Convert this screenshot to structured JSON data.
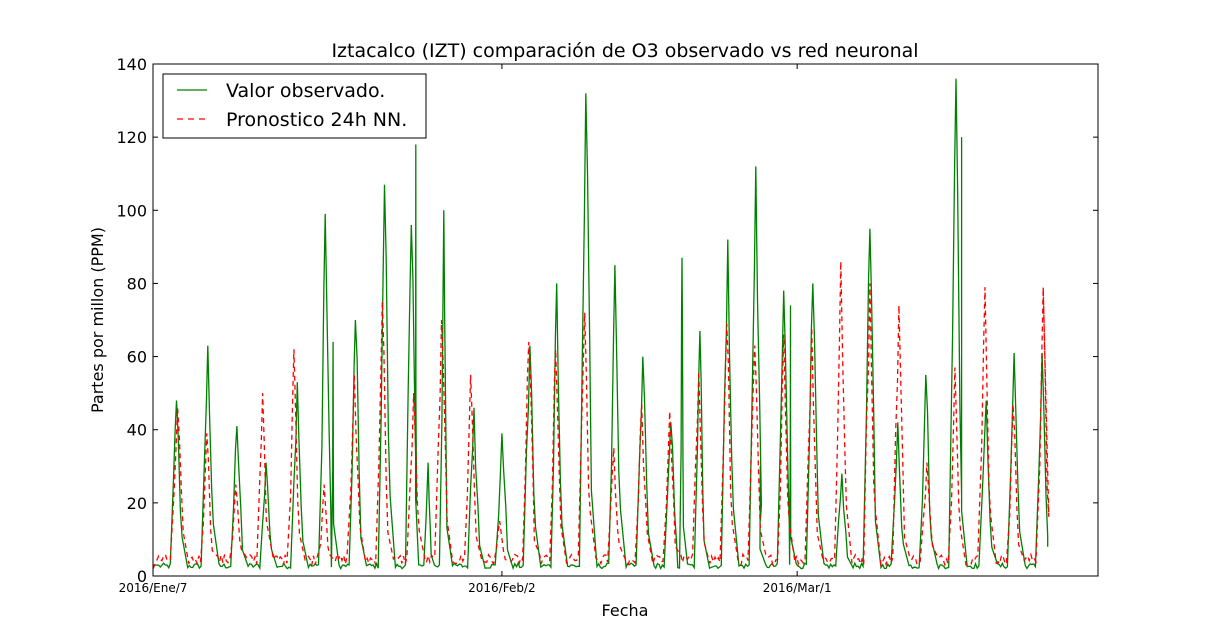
{
  "chart_data": {
    "type": "line",
    "title": "Iztacalco (IZT) comparación de O3 observado vs red neuronal",
    "xlabel": "Fecha",
    "ylabel": "Partes por millon (PPM)",
    "x_range": [
      0,
      1690
    ],
    "ylim": [
      0,
      140
    ],
    "y_ticks": [
      0,
      20,
      40,
      60,
      80,
      100,
      120,
      140
    ],
    "x_ticks": [
      {
        "x": 0,
        "label": "2016/Ene/7"
      },
      {
        "x": 624,
        "label": "2016/Feb/2"
      },
      {
        "x": 1152,
        "label": "2016/Mar/1"
      }
    ],
    "grid": false,
    "legend": "top-left",
    "series": [
      {
        "name": "Valor observado.",
        "color": "#008000",
        "style": "solid",
        "peaks": [
          {
            "x": 42,
            "y": 48
          },
          {
            "x": 98,
            "y": 63
          },
          {
            "x": 150,
            "y": 41
          },
          {
            "x": 202,
            "y": 31
          },
          {
            "x": 258,
            "y": 53
          },
          {
            "x": 308,
            "y": 99
          },
          {
            "x": 322,
            "y": 64
          },
          {
            "x": 362,
            "y": 70
          },
          {
            "x": 414,
            "y": 107
          },
          {
            "x": 462,
            "y": 96
          },
          {
            "x": 470,
            "y": 118
          },
          {
            "x": 492,
            "y": 31
          },
          {
            "x": 520,
            "y": 100
          },
          {
            "x": 574,
            "y": 46
          },
          {
            "x": 624,
            "y": 39
          },
          {
            "x": 674,
            "y": 63
          },
          {
            "x": 722,
            "y": 80
          },
          {
            "x": 774,
            "y": 132
          },
          {
            "x": 826,
            "y": 85
          },
          {
            "x": 876,
            "y": 60
          },
          {
            "x": 926,
            "y": 42
          },
          {
            "x": 946,
            "y": 87
          },
          {
            "x": 978,
            "y": 67
          },
          {
            "x": 1028,
            "y": 92
          },
          {
            "x": 1078,
            "y": 112
          },
          {
            "x": 1086,
            "y": 30
          },
          {
            "x": 1128,
            "y": 78
          },
          {
            "x": 1140,
            "y": 74
          },
          {
            "x": 1180,
            "y": 80
          },
          {
            "x": 1232,
            "y": 28
          },
          {
            "x": 1282,
            "y": 95
          },
          {
            "x": 1332,
            "y": 42
          },
          {
            "x": 1382,
            "y": 55
          },
          {
            "x": 1436,
            "y": 136
          },
          {
            "x": 1446,
            "y": 120
          },
          {
            "x": 1490,
            "y": 48
          },
          {
            "x": 1540,
            "y": 61
          },
          {
            "x": 1590,
            "y": 61
          }
        ],
        "end": {
          "x": 1600,
          "y": 8
        }
      },
      {
        "name": "Pronostico 24h NN.",
        "color": "#ff0000",
        "style": "dashed",
        "peaks": [
          {
            "x": 44,
            "y": 46
          },
          {
            "x": 96,
            "y": 39
          },
          {
            "x": 148,
            "y": 25
          },
          {
            "x": 196,
            "y": 50
          },
          {
            "x": 252,
            "y": 62
          },
          {
            "x": 306,
            "y": 25
          },
          {
            "x": 360,
            "y": 55
          },
          {
            "x": 410,
            "y": 75
          },
          {
            "x": 466,
            "y": 50
          },
          {
            "x": 516,
            "y": 70
          },
          {
            "x": 568,
            "y": 55
          },
          {
            "x": 620,
            "y": 15
          },
          {
            "x": 672,
            "y": 64
          },
          {
            "x": 720,
            "y": 62
          },
          {
            "x": 772,
            "y": 72
          },
          {
            "x": 824,
            "y": 35
          },
          {
            "x": 874,
            "y": 47
          },
          {
            "x": 924,
            "y": 45
          },
          {
            "x": 976,
            "y": 56
          },
          {
            "x": 1026,
            "y": 69
          },
          {
            "x": 1076,
            "y": 63
          },
          {
            "x": 1128,
            "y": 66
          },
          {
            "x": 1178,
            "y": 68
          },
          {
            "x": 1230,
            "y": 86
          },
          {
            "x": 1282,
            "y": 80
          },
          {
            "x": 1334,
            "y": 74
          },
          {
            "x": 1384,
            "y": 31
          },
          {
            "x": 1434,
            "y": 57
          },
          {
            "x": 1488,
            "y": 79
          },
          {
            "x": 1538,
            "y": 47
          },
          {
            "x": 1592,
            "y": 79
          }
        ],
        "end": {
          "x": 1592,
          "y": 79
        }
      }
    ]
  }
}
